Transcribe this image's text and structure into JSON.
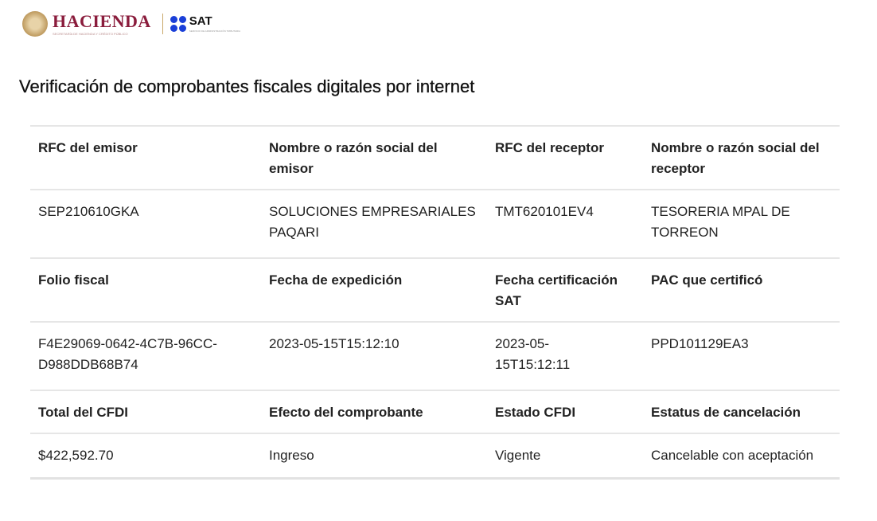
{
  "logo": {
    "hacienda": "HACIENDA",
    "hacienda_sub": "SECRETARÍA DE HACIENDA Y CRÉDITO PÚBLICO",
    "sat": "SAT",
    "sat_sub": "SERVICIO DE ADMINISTRACIÓN TRIBUTARIA"
  },
  "title": "Verificación de comprobantes fiscales digitales por internet",
  "rows": [
    [
      "RFC del emisor",
      "Nombre o razón social del emisor",
      "RFC del receptor",
      "Nombre o razón social del receptor"
    ],
    [
      "SEP210610GKA",
      "SOLUCIONES EMPRESARIALES PAQARI",
      "TMT620101EV4",
      "TESORERIA MPAL DE TORREON"
    ],
    [
      "Folio fiscal",
      "Fecha de expedición",
      "Fecha certificación SAT",
      "PAC que certificó"
    ],
    [
      "F4E29069-0642-4C7B-96CC-D988DDB68B74",
      "2023-05-15T15:12:10",
      "2023-05-15T15:12:11",
      "PPD101129EA3"
    ],
    [
      "Total del CFDI",
      "Efecto del comprobante",
      "Estado CFDI",
      "Estatus de cancelación"
    ],
    [
      "$422,592.70",
      "Ingreso",
      "Vigente",
      "Cancelable con aceptación"
    ]
  ]
}
